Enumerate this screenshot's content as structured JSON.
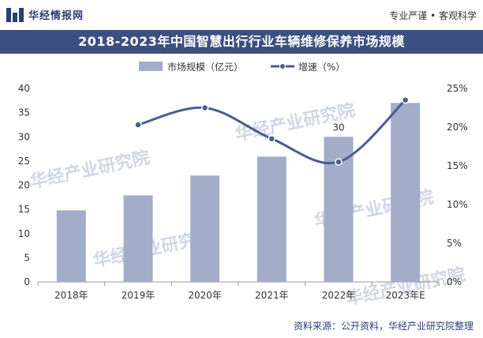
{
  "header": {
    "logo_text": "华经情报网",
    "tagline": "专业严谨 • 客观科学"
  },
  "title": "2018-2023年中国智慧出行行业车辆维修保养市场规模",
  "source": "资料来源：公开资料，华经产业研究院整理",
  "watermark": "华经产业研究院",
  "colors": {
    "bar": "#a3adc8",
    "line": "#4a5d8e",
    "title_bar": "#3b4f80",
    "brand": "#2b3f73"
  },
  "chart_data": {
    "type": "bar",
    "categories": [
      "2018年",
      "2019年",
      "2020年",
      "2021年",
      "2022年",
      "2023年E"
    ],
    "series": [
      {
        "name": "市场规模（亿元）",
        "type": "bar",
        "axis": "left",
        "values": [
          14.8,
          17.9,
          22.0,
          25.9,
          30.0,
          37.0
        ]
      },
      {
        "name": "增速（%）",
        "type": "line",
        "axis": "right",
        "values": [
          null,
          20.3,
          22.5,
          18.5,
          15.5,
          23.5
        ]
      }
    ],
    "data_labels": [
      {
        "series": 0,
        "index": 4,
        "text": "30"
      }
    ],
    "ylim": [
      0,
      40
    ],
    "yticks": [
      "0",
      "5",
      "10",
      "15",
      "20",
      "25",
      "30",
      "35",
      "40"
    ],
    "y2lim": [
      0,
      25
    ],
    "y2ticks": [
      "0%",
      "5%",
      "10%",
      "15%",
      "20%",
      "25%"
    ],
    "legend_position": "top-center",
    "grid": false
  }
}
